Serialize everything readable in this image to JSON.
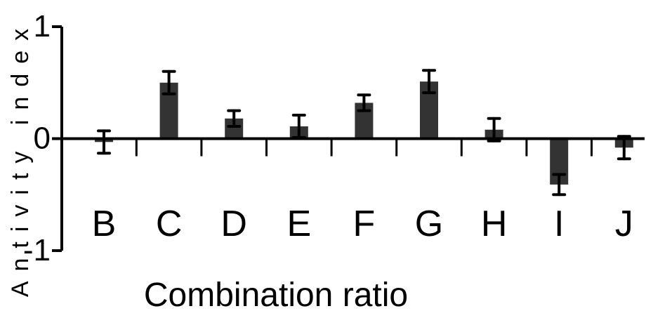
{
  "chart_data": {
    "type": "bar",
    "title": "",
    "xlabel": "Combination ratio",
    "ylabel": "Antivity index",
    "categories": [
      "B",
      "C",
      "D",
      "E",
      "F",
      "G",
      "H",
      "I",
      "J"
    ],
    "values": [
      -0.03,
      0.5,
      0.18,
      0.11,
      0.32,
      0.51,
      0.08,
      -0.41,
      -0.08
    ],
    "errors": [
      0.1,
      0.1,
      0.07,
      0.1,
      0.07,
      0.1,
      0.1,
      0.09,
      0.1
    ],
    "ylim": [
      -1,
      1
    ],
    "yticks": [
      -1,
      0,
      1
    ],
    "ytick_labels": [
      "-1",
      "0",
      "1"
    ],
    "grid": false,
    "bar_color": "#333333"
  }
}
